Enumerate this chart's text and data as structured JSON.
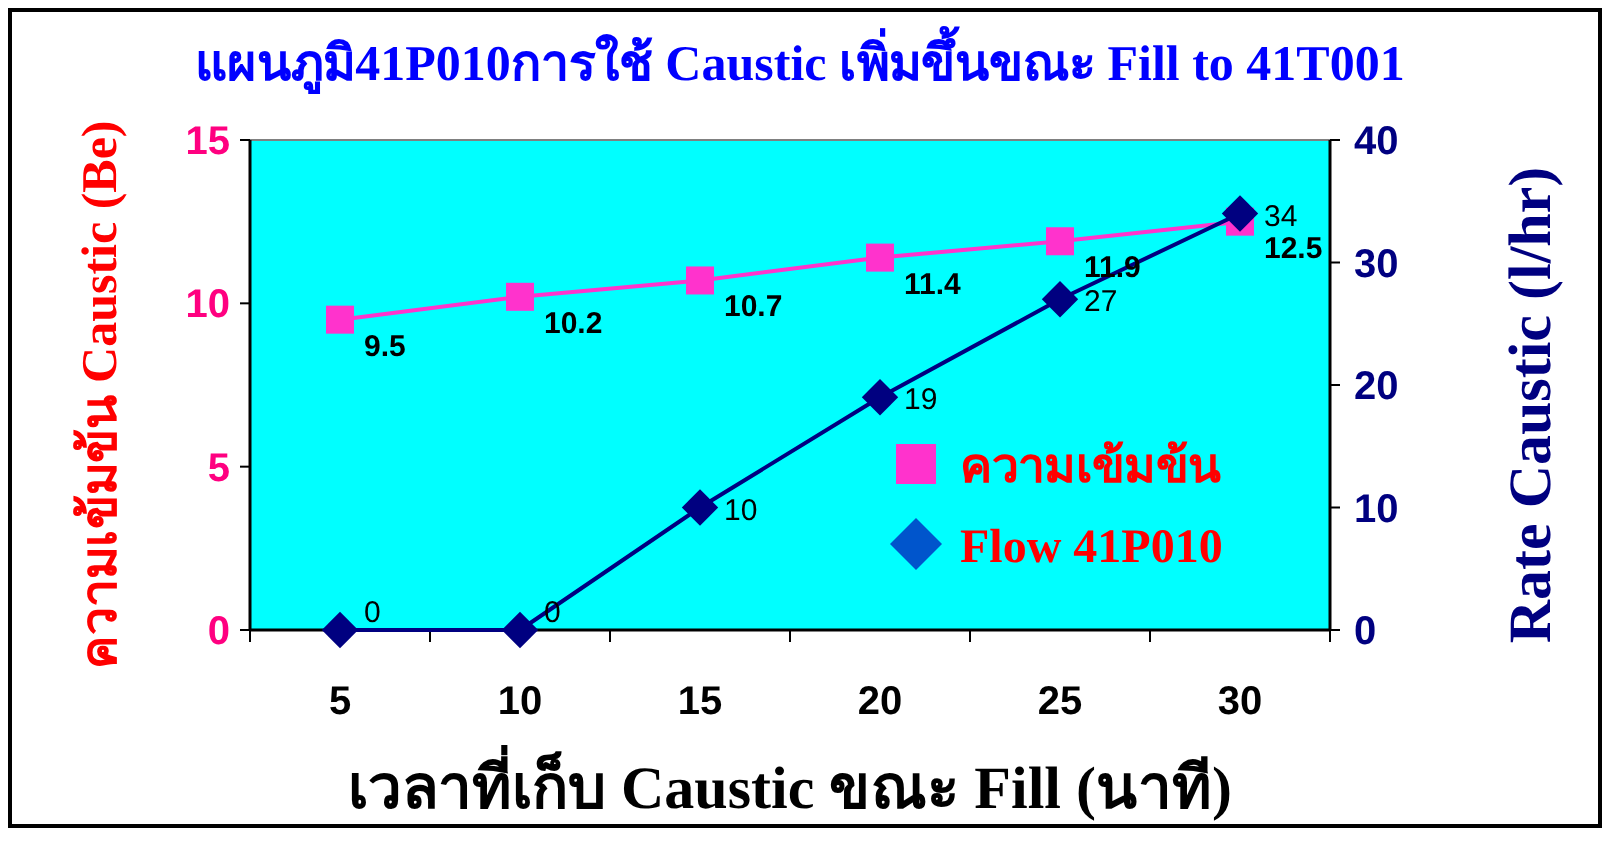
{
  "chart_data": {
    "type": "line",
    "title": "แผนภูมิ41P010การใช้ Caustic เพิ่มขึ้นขณะ Fill to 41T001",
    "xlabel": "เวลาที่เก็บ Caustic ขณะ Fill (นาที)",
    "ylabel": "ความเข้มข้น Caustic  (Be)",
    "y2label": "Rate Caustic (l/hr)",
    "categories": [
      "5",
      "10",
      "15",
      "20",
      "25",
      "30"
    ],
    "series": [
      {
        "name": "ความเข้มข้น",
        "color": "#ff33cc",
        "marker": "square",
        "axis": "y",
        "values": [
          9.5,
          10.2,
          10.7,
          11.4,
          11.9,
          12.5
        ]
      },
      {
        "name": "Flow 41P010",
        "color": "#000080",
        "marker": "diamond",
        "axis": "y2",
        "values": [
          0,
          0,
          10,
          19,
          27,
          34
        ]
      }
    ],
    "ylim": [
      0,
      15
    ],
    "yticks": [
      0,
      5,
      10,
      15
    ],
    "y2lim": [
      0,
      40
    ],
    "y2ticks": [
      0,
      10,
      20,
      30,
      40
    ],
    "data_labels": true,
    "legend": "bottom right",
    "grid": false
  }
}
